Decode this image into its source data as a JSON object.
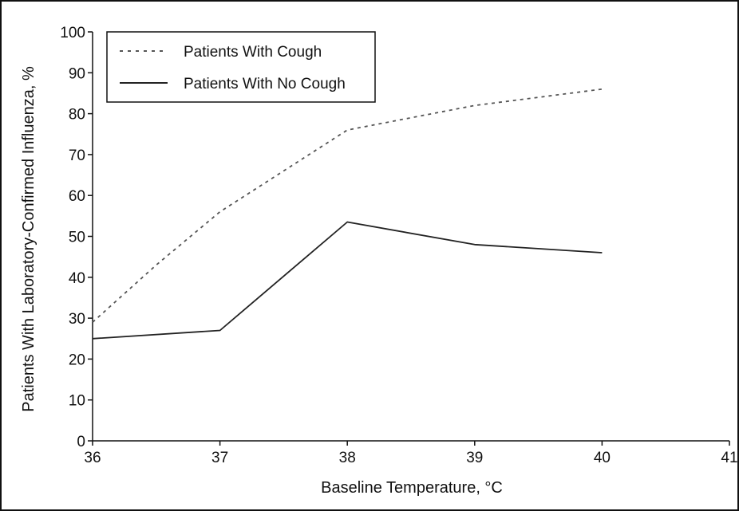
{
  "chart_data": {
    "type": "line",
    "title": "",
    "xlabel": "Baseline Temperature, °C",
    "ylabel": "Patients With Laboratory-Confirmed Influenza, %",
    "xlim": [
      36,
      41
    ],
    "ylim": [
      0,
      100
    ],
    "x_ticks": [
      36,
      37,
      38,
      39,
      40,
      41
    ],
    "y_ticks": [
      0,
      10,
      20,
      30,
      40,
      50,
      60,
      70,
      80,
      90,
      100
    ],
    "grid": false,
    "legend_position": "top-left",
    "series": [
      {
        "name": "Patients With Cough",
        "style": "dotted",
        "color": "#555555",
        "points": [
          [
            36,
            29
          ],
          [
            36.5,
            43
          ],
          [
            37,
            56
          ],
          [
            37.5,
            66
          ],
          [
            38,
            76
          ],
          [
            38.5,
            79
          ],
          [
            39,
            82
          ],
          [
            39.5,
            84
          ],
          [
            40,
            86
          ]
        ]
      },
      {
        "name": "Patients With No Cough",
        "style": "solid",
        "color": "#222222",
        "points": [
          [
            36,
            25
          ],
          [
            37,
            27
          ],
          [
            38,
            53.5
          ],
          [
            39,
            48
          ],
          [
            40,
            46
          ]
        ]
      }
    ]
  }
}
